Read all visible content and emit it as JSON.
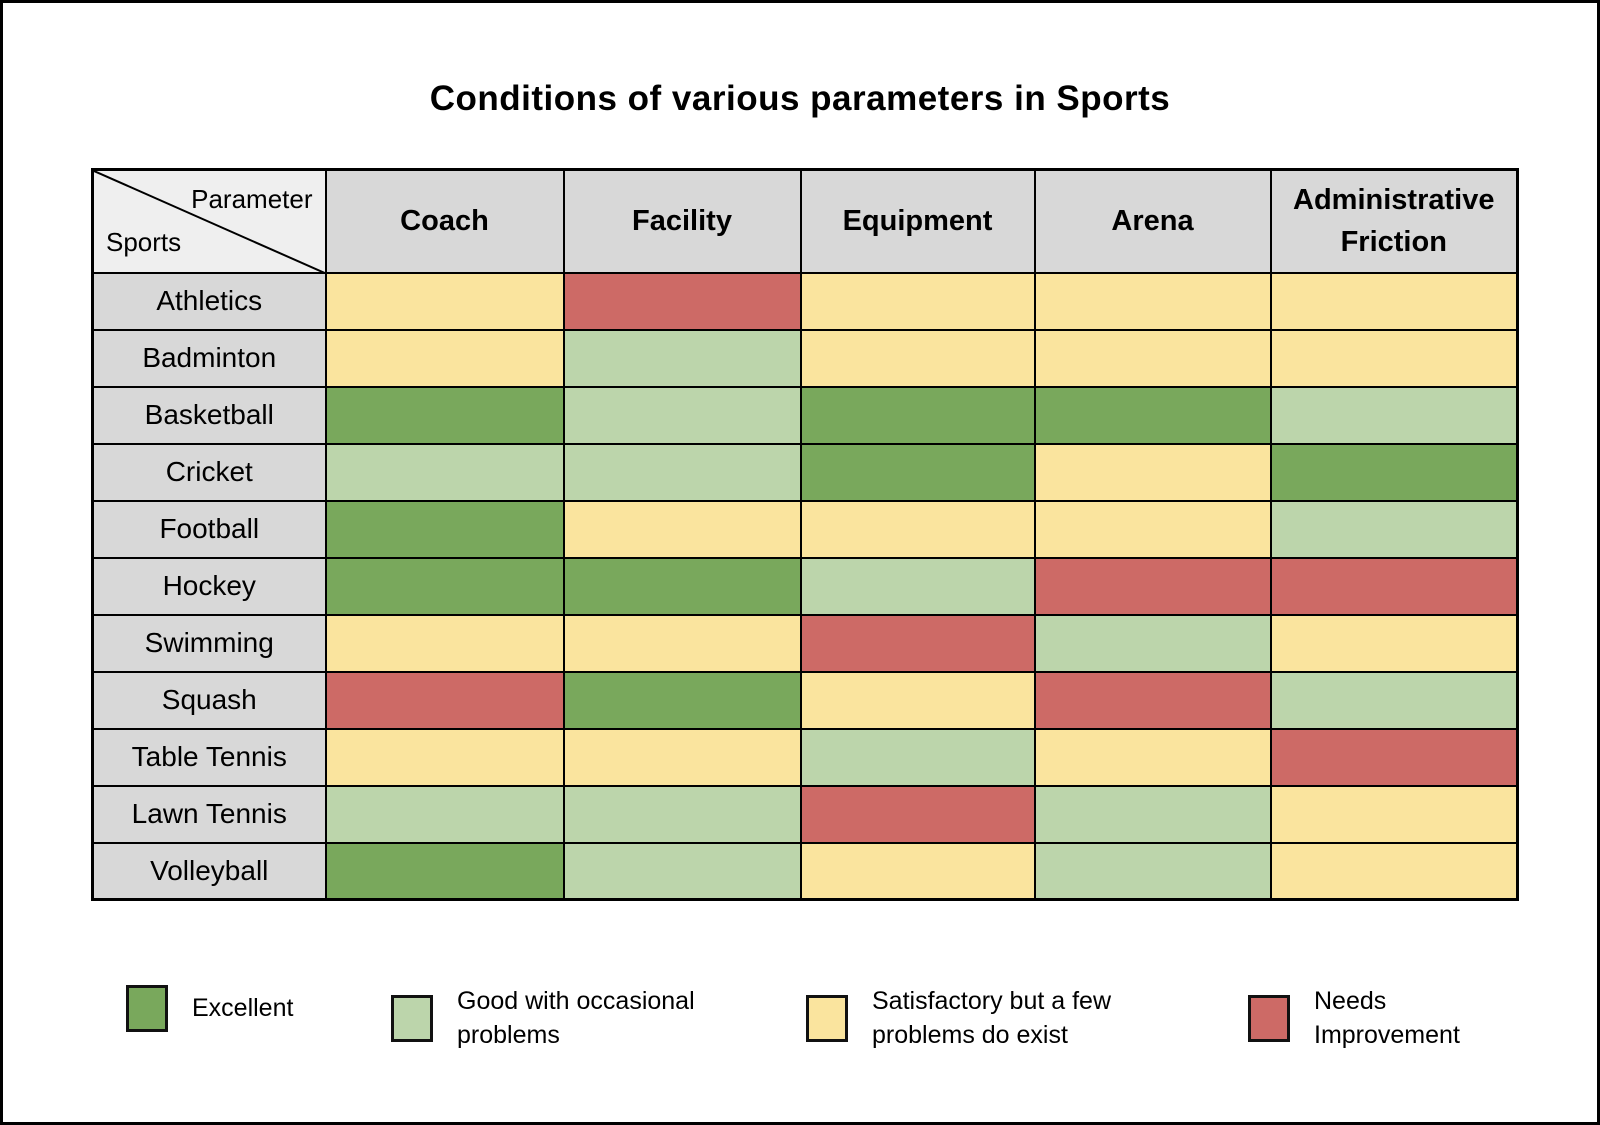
{
  "title": "Conditions of various parameters in Sports",
  "corner": {
    "top_label": "Parameter",
    "bottom_label": "Sports"
  },
  "chart_data": {
    "type": "heatmap",
    "title": "Conditions of various parameters in Sports",
    "columns": [
      "Coach",
      "Facility",
      "Equipment",
      "Arena",
      "Administrative Friction"
    ],
    "rows": [
      {
        "sport": "Athletics",
        "values": [
          "satisfactory",
          "needs_improvement",
          "satisfactory",
          "satisfactory",
          "satisfactory"
        ]
      },
      {
        "sport": "Badminton",
        "values": [
          "satisfactory",
          "good",
          "satisfactory",
          "satisfactory",
          "satisfactory"
        ]
      },
      {
        "sport": "Basketball",
        "values": [
          "excellent",
          "good",
          "excellent",
          "excellent",
          "good"
        ]
      },
      {
        "sport": "Cricket",
        "values": [
          "good",
          "good",
          "excellent",
          "satisfactory",
          "excellent"
        ]
      },
      {
        "sport": "Football",
        "values": [
          "excellent",
          "satisfactory",
          "satisfactory",
          "satisfactory",
          "good"
        ]
      },
      {
        "sport": "Hockey",
        "values": [
          "excellent",
          "excellent",
          "good",
          "needs_improvement",
          "needs_improvement"
        ]
      },
      {
        "sport": "Swimming",
        "values": [
          "satisfactory",
          "satisfactory",
          "needs_improvement",
          "good",
          "satisfactory"
        ]
      },
      {
        "sport": "Squash",
        "values": [
          "needs_improvement",
          "excellent",
          "satisfactory",
          "needs_improvement",
          "good"
        ]
      },
      {
        "sport": "Table Tennis",
        "values": [
          "satisfactory",
          "satisfactory",
          "good",
          "satisfactory",
          "needs_improvement"
        ]
      },
      {
        "sport": "Lawn Tennis",
        "values": [
          "good",
          "good",
          "needs_improvement",
          "good",
          "satisfactory"
        ]
      },
      {
        "sport": "Volleyball",
        "values": [
          "excellent",
          "good",
          "satisfactory",
          "good",
          "satisfactory"
        ]
      }
    ],
    "legend": {
      "order": [
        "excellent",
        "good",
        "satisfactory",
        "needs_improvement"
      ],
      "labels": {
        "excellent": "Excellent",
        "good": "Good with occasional problems",
        "satisfactory": "Satisfactory but a few problems do exist",
        "needs_improvement": "Needs Improvement"
      },
      "colors": {
        "excellent": "#79a85c",
        "good": "#bcd5ab",
        "satisfactory": "#fae49e",
        "needs_improvement": "#cd6a66"
      }
    }
  }
}
